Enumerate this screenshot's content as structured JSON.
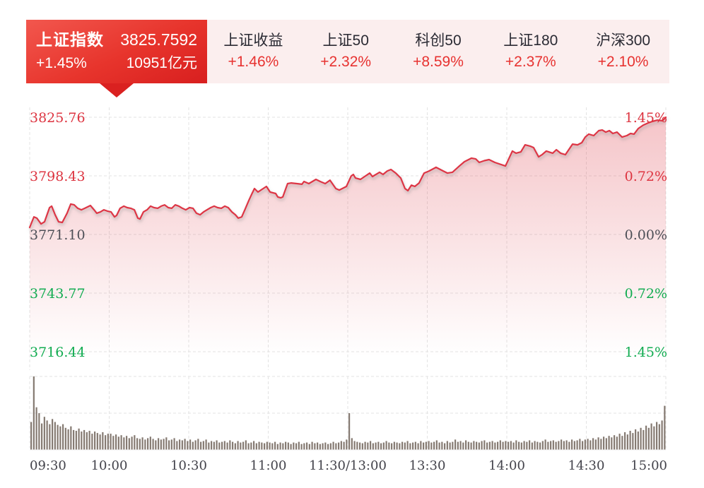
{
  "tabs": {
    "selected": {
      "name": "上证指数",
      "value": "3825.7592",
      "change": "+1.45%",
      "turnover": "10951亿元"
    },
    "others": [
      {
        "name": "上证收益",
        "change": "+1.46%"
      },
      {
        "name": "上证50",
        "change": "+2.32%"
      },
      {
        "name": "科创50",
        "change": "+8.59%"
      },
      {
        "name": "上证180",
        "change": "+2.37%"
      },
      {
        "name": "沪深300",
        "change": "+2.10%"
      }
    ]
  },
  "colors": {
    "up": "#dd3440",
    "down": "#12ac51",
    "flat": "#4d4f57",
    "axis_text": "#43434b",
    "grid": "#e3e3e3",
    "line": "#dd3645",
    "fill": "#df4652",
    "volume_bar": "#857a72",
    "tab_accent": "#d81f1f",
    "tab_bg": "#fbeeee"
  },
  "chart_data": {
    "type": "line",
    "title": "",
    "x_unit": "trading_minute",
    "x_minutes_total": 240,
    "x_axis_labels": [
      "09:30",
      "10:00",
      "10:30",
      "11:00",
      "11:30/13:00",
      "13:30",
      "14:00",
      "14:30",
      "15:00"
    ],
    "prev_close": 3771.1,
    "last_price": 3825.7592,
    "change_percent": "+1.45%",
    "ylim": [
      3716.44,
      3825.76
    ],
    "grid": true,
    "legend_position": "none",
    "y_ticks_left": [
      {
        "text": "3825.76",
        "tone": "up"
      },
      {
        "text": "3798.43",
        "tone": "up"
      },
      {
        "text": "3771.10",
        "tone": "flat"
      },
      {
        "text": "3743.77",
        "tone": "down"
      },
      {
        "text": "3716.44",
        "tone": "down"
      }
    ],
    "y_ticks_right": [
      {
        "text": "1.45%",
        "tone": "up"
      },
      {
        "text": "0.72%",
        "tone": "up"
      },
      {
        "text": "0.00%",
        "tone": "flat"
      },
      {
        "text": "0.72%",
        "tone": "down"
      },
      {
        "text": "1.45%",
        "tone": "down"
      }
    ],
    "price_points": [
      [
        0,
        3774.4
      ],
      [
        1.6,
        3779.3
      ],
      [
        2.7,
        3778.7
      ],
      [
        4.3,
        3776.0
      ],
      [
        5.6,
        3777.0
      ],
      [
        7.5,
        3783.6
      ],
      [
        8.3,
        3784.3
      ],
      [
        9.6,
        3780.3
      ],
      [
        10.9,
        3777.0
      ],
      [
        12.3,
        3776.7
      ],
      [
        14.1,
        3781.0
      ],
      [
        15.5,
        3785.3
      ],
      [
        16.8,
        3784.9
      ],
      [
        18.1,
        3783.3
      ],
      [
        19.5,
        3782.6
      ],
      [
        20.8,
        3783.3
      ],
      [
        22.9,
        3784.6
      ],
      [
        24.3,
        3782.6
      ],
      [
        25.3,
        3781.0
      ],
      [
        26.7,
        3781.6
      ],
      [
        28,
        3782.6
      ],
      [
        29.3,
        3782.0
      ],
      [
        30.7,
        3781.6
      ],
      [
        32,
        3779.3
      ],
      [
        32.8,
        3780.0
      ],
      [
        34.1,
        3783.3
      ],
      [
        35.5,
        3784.3
      ],
      [
        36.8,
        3783.6
      ],
      [
        38.1,
        3783.3
      ],
      [
        39.5,
        3782.6
      ],
      [
        40.8,
        3778.7
      ],
      [
        41.6,
        3778.3
      ],
      [
        42.9,
        3781.6
      ],
      [
        44.3,
        3782.6
      ],
      [
        45.6,
        3784.3
      ],
      [
        46.9,
        3783.6
      ],
      [
        48.3,
        3783.3
      ],
      [
        49.6,
        3784.3
      ],
      [
        50.9,
        3784.9
      ],
      [
        52.3,
        3783.6
      ],
      [
        53.6,
        3783.3
      ],
      [
        54.9,
        3784.9
      ],
      [
        56.3,
        3784.3
      ],
      [
        57.6,
        3783.3
      ],
      [
        58.9,
        3782.6
      ],
      [
        60.3,
        3783.6
      ],
      [
        61.6,
        3783.3
      ],
      [
        62.9,
        3781.0
      ],
      [
        64.3,
        3780.3
      ],
      [
        65.6,
        3781.6
      ],
      [
        66.9,
        3782.6
      ],
      [
        68.3,
        3783.6
      ],
      [
        69.6,
        3784.3
      ],
      [
        70.9,
        3783.6
      ],
      [
        72.3,
        3783.3
      ],
      [
        73.6,
        3784.3
      ],
      [
        74.9,
        3783.6
      ],
      [
        76.3,
        3781.6
      ],
      [
        77.6,
        3780.3
      ],
      [
        78.7,
        3778.7
      ],
      [
        80,
        3779.3
      ],
      [
        81.3,
        3783.0
      ],
      [
        82.7,
        3787.0
      ],
      [
        84,
        3790.5
      ],
      [
        84.8,
        3792.5
      ],
      [
        86.1,
        3790.9
      ],
      [
        89.3,
        3793.5
      ],
      [
        90.7,
        3790.9
      ],
      [
        92.8,
        3790.2
      ],
      [
        93.6,
        3788.6
      ],
      [
        94.7,
        3788.2
      ],
      [
        95.5,
        3788.6
      ],
      [
        97.3,
        3794.8
      ],
      [
        98.7,
        3795.1
      ],
      [
        100.8,
        3794.8
      ],
      [
        102.7,
        3794.5
      ],
      [
        103.5,
        3795.8
      ],
      [
        105.3,
        3794.8
      ],
      [
        108,
        3796.8
      ],
      [
        109.6,
        3795.8
      ],
      [
        111.5,
        3794.8
      ],
      [
        113.3,
        3796.4
      ],
      [
        115.5,
        3792.5
      ],
      [
        116.8,
        3791.8
      ],
      [
        119.5,
        3793.5
      ],
      [
        121.3,
        3798.4
      ],
      [
        122.1,
        3799.1
      ],
      [
        122.9,
        3797.4
      ],
      [
        124.8,
        3796.8
      ],
      [
        126.7,
        3798.4
      ],
      [
        128.3,
        3799.7
      ],
      [
        129.3,
        3798.1
      ],
      [
        132,
        3800.1
      ],
      [
        133.3,
        3799.1
      ],
      [
        134.9,
        3800.7
      ],
      [
        136.3,
        3801.4
      ],
      [
        138.1,
        3799.7
      ],
      [
        140,
        3797.4
      ],
      [
        141.6,
        3792.5
      ],
      [
        142.7,
        3791.5
      ],
      [
        144,
        3794.1
      ],
      [
        145.3,
        3793.5
      ],
      [
        146.9,
        3795.1
      ],
      [
        148.8,
        3799.7
      ],
      [
        150.7,
        3800.7
      ],
      [
        153.3,
        3802.4
      ],
      [
        154.9,
        3801.4
      ],
      [
        156,
        3800.7
      ],
      [
        157.6,
        3799.7
      ],
      [
        159.5,
        3800.1
      ],
      [
        162.1,
        3803.0
      ],
      [
        164,
        3805.0
      ],
      [
        166.7,
        3806.7
      ],
      [
        168.3,
        3806.3
      ],
      [
        169.6,
        3804.7
      ],
      [
        171.5,
        3805.5
      ],
      [
        173.3,
        3806.0
      ],
      [
        175.5,
        3804.7
      ],
      [
        179.5,
        3803.0
      ],
      [
        182.1,
        3810.0
      ],
      [
        183.5,
        3809.0
      ],
      [
        185.3,
        3809.6
      ],
      [
        186.9,
        3812.9
      ],
      [
        188.8,
        3812.3
      ],
      [
        190.1,
        3811.6
      ],
      [
        192,
        3807.3
      ],
      [
        193.3,
        3808.3
      ],
      [
        194.9,
        3810.0
      ],
      [
        197.3,
        3809.0
      ],
      [
        198.7,
        3810.6
      ],
      [
        200.3,
        3809.0
      ],
      [
        202.1,
        3808.3
      ],
      [
        204.8,
        3813.2
      ],
      [
        206.7,
        3812.9
      ],
      [
        208.3,
        3813.9
      ],
      [
        209.6,
        3816.5
      ],
      [
        210.9,
        3817.9
      ],
      [
        212.8,
        3817.2
      ],
      [
        214.7,
        3819.5
      ],
      [
        216,
        3819.8
      ],
      [
        217.3,
        3818.8
      ],
      [
        218.7,
        3819.5
      ],
      [
        220,
        3818.2
      ],
      [
        221.6,
        3818.8
      ],
      [
        223.5,
        3816.5
      ],
      [
        225.3,
        3817.2
      ],
      [
        226.7,
        3818.2
      ],
      [
        228,
        3817.9
      ],
      [
        229.6,
        3820.5
      ],
      [
        231.5,
        3822.1
      ],
      [
        233.3,
        3823.1
      ],
      [
        234.9,
        3823.8
      ],
      [
        236.8,
        3824.4
      ],
      [
        238.7,
        3824.1
      ],
      [
        240,
        3825.76
      ]
    ],
    "volume_relative": [
      38,
      100,
      58,
      50,
      36,
      45,
      40,
      35,
      42,
      38,
      34,
      32,
      35,
      30,
      28,
      32,
      27,
      26,
      29,
      25,
      27,
      24,
      26,
      22,
      25,
      23,
      21,
      24,
      20,
      22,
      22,
      19,
      21,
      18,
      20,
      17,
      19,
      16,
      18,
      20,
      16,
      15,
      17,
      14,
      16,
      18,
      15,
      13,
      16,
      14,
      15,
      17,
      13,
      14,
      16,
      12,
      14,
      13,
      15,
      12,
      14,
      11,
      13,
      15,
      11,
      12,
      14,
      10,
      12,
      11,
      13,
      10,
      11,
      12,
      10,
      13,
      11,
      9,
      12,
      10,
      11,
      13,
      9,
      10,
      12,
      9,
      11,
      10,
      9,
      11,
      10,
      9,
      11,
      8,
      10,
      9,
      11,
      10,
      8,
      10,
      9,
      11,
      8,
      9,
      10,
      8,
      11,
      9,
      10,
      8,
      9,
      10,
      8,
      9,
      11,
      9,
      10,
      12,
      11,
      14,
      50,
      16,
      12,
      11,
      10,
      9,
      11,
      10,
      12,
      9,
      10,
      11,
      9,
      10,
      12,
      10,
      9,
      11,
      10,
      9,
      11,
      10,
      12,
      9,
      10,
      11,
      9,
      12,
      10,
      11,
      12,
      10,
      11,
      13,
      10,
      11,
      9,
      12,
      10,
      11,
      14,
      11,
      12,
      10,
      13,
      11,
      10,
      12,
      11,
      10,
      12,
      13,
      10,
      11,
      12,
      10,
      11,
      13,
      11,
      12,
      11,
      12,
      10,
      13,
      11,
      10,
      12,
      11,
      13,
      10,
      12,
      11,
      10,
      12,
      14,
      11,
      12,
      13,
      11,
      12,
      14,
      12,
      13,
      11,
      14,
      12,
      13,
      15,
      12,
      14,
      15,
      13,
      16,
      14,
      17,
      15,
      18,
      16,
      19,
      17,
      20,
      18,
      22,
      19,
      24,
      21,
      26,
      23,
      28,
      25,
      30,
      27,
      33,
      30,
      36,
      32,
      38,
      35,
      40,
      60
    ]
  }
}
